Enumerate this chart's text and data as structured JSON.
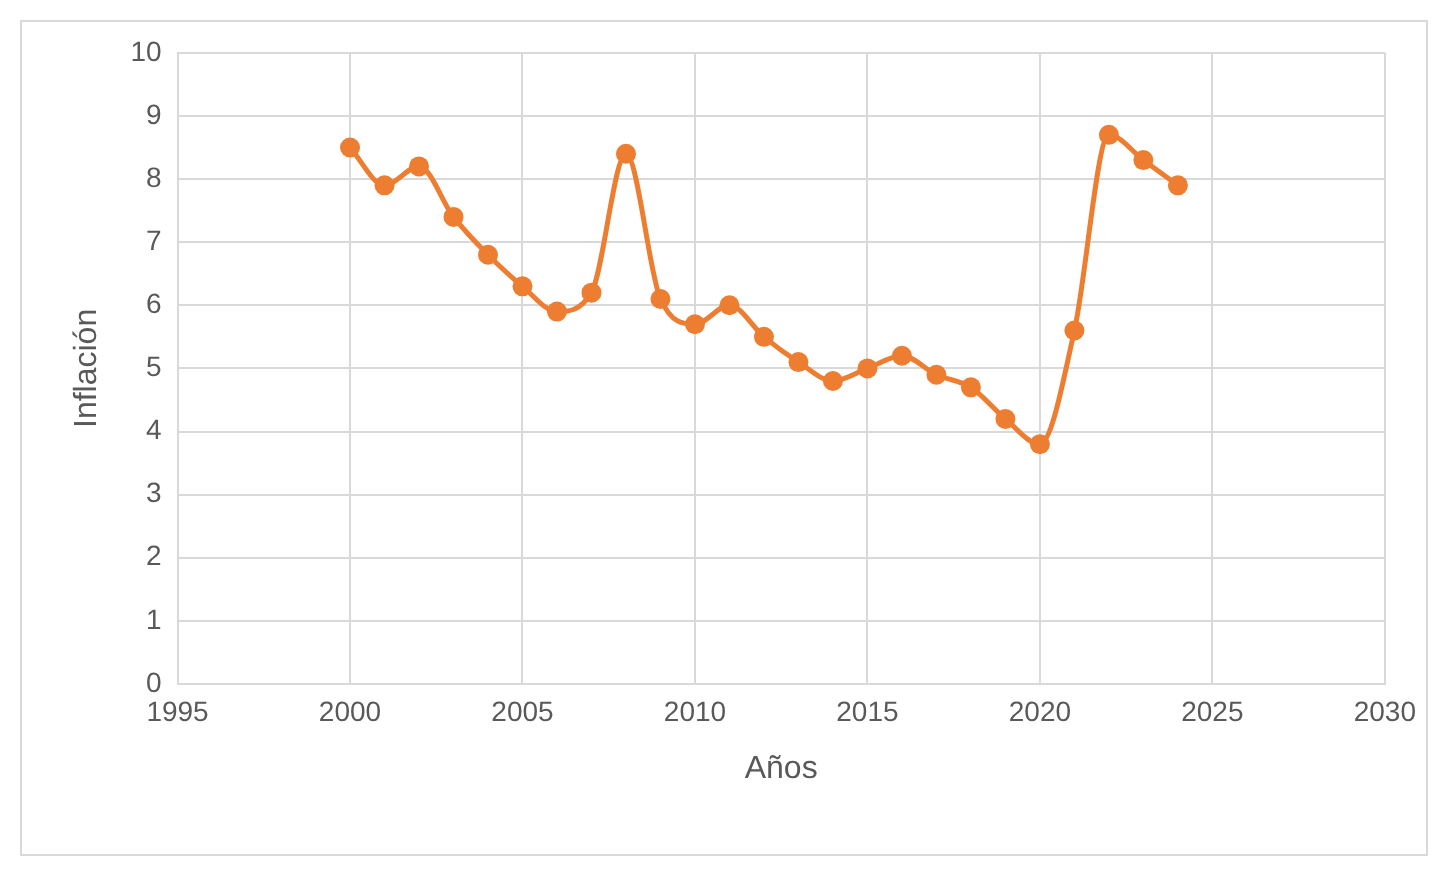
{
  "chart_data": {
    "type": "line",
    "xlabel": "Años",
    "ylabel": "Inflación",
    "x": [
      2000,
      2001,
      2002,
      2003,
      2004,
      2005,
      2006,
      2007,
      2008,
      2009,
      2010,
      2011,
      2012,
      2013,
      2014,
      2015,
      2016,
      2017,
      2018,
      2019,
      2020,
      2021,
      2022,
      2023,
      2024
    ],
    "series": [
      {
        "color": "#ed7d31",
        "values": [
          8.5,
          7.9,
          8.2,
          7.4,
          6.8,
          6.3,
          5.9,
          6.2,
          8.4,
          6.1,
          5.7,
          6.0,
          5.5,
          5.1,
          4.8,
          5.0,
          5.2,
          4.9,
          4.7,
          4.2,
          3.8,
          5.6,
          8.7,
          8.3,
          7.9
        ]
      }
    ],
    "xlim": [
      1995,
      2030
    ],
    "xticks": [
      1995,
      2000,
      2005,
      2010,
      2015,
      2020,
      2025,
      2030
    ],
    "ylim": [
      0,
      10
    ],
    "yticks": [
      0,
      1,
      2,
      3,
      4,
      5,
      6,
      7,
      8,
      9,
      10
    ],
    "grid": true,
    "legend": false,
    "marker": "circle",
    "line_style": "solid"
  }
}
